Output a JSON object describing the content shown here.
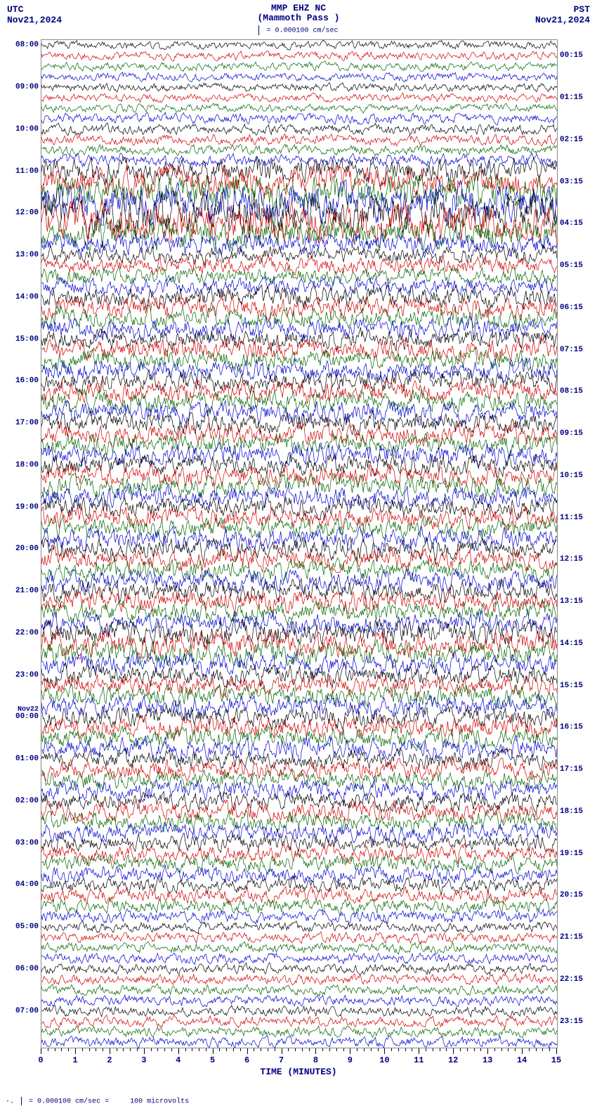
{
  "header": {
    "utc_label": "UTC",
    "utc_date": "Nov21,2024",
    "pst_label": "PST",
    "pst_date": "Nov21,2024",
    "title": "MMP EHZ NC",
    "subtitle": "(Mammoth Pass )",
    "scale_text": "= 0.000100 cm/sec"
  },
  "xaxis": {
    "title": "TIME (MINUTES)",
    "min": 0,
    "max": 15,
    "major_ticks": [
      0,
      1,
      2,
      3,
      4,
      5,
      6,
      7,
      8,
      9,
      10,
      11,
      12,
      13,
      14,
      15
    ],
    "minor_per_major": 4
  },
  "footer": {
    "text_left": "= 0.000100 cm/sec =",
    "text_right": "100 microvolts"
  },
  "colors": {
    "cycle": [
      "#000000",
      "#d00000",
      "#006400",
      "#0000d0"
    ],
    "axis": "#000080",
    "background": "#ffffff"
  },
  "plot": {
    "n_traces": 96,
    "utc_hour_labels": [
      {
        "row": 0,
        "label": "08:00"
      },
      {
        "row": 4,
        "label": "09:00"
      },
      {
        "row": 8,
        "label": "10:00"
      },
      {
        "row": 12,
        "label": "11:00"
      },
      {
        "row": 16,
        "label": "12:00"
      },
      {
        "row": 20,
        "label": "13:00"
      },
      {
        "row": 24,
        "label": "14:00"
      },
      {
        "row": 28,
        "label": "15:00"
      },
      {
        "row": 32,
        "label": "16:00"
      },
      {
        "row": 36,
        "label": "17:00"
      },
      {
        "row": 40,
        "label": "18:00"
      },
      {
        "row": 44,
        "label": "19:00"
      },
      {
        "row": 48,
        "label": "20:00"
      },
      {
        "row": 52,
        "label": "21:00"
      },
      {
        "row": 56,
        "label": "22:00"
      },
      {
        "row": 60,
        "label": "23:00"
      },
      {
        "row": 64,
        "label": "00:00",
        "day": "Nov22"
      },
      {
        "row": 68,
        "label": "01:00"
      },
      {
        "row": 72,
        "label": "02:00"
      },
      {
        "row": 76,
        "label": "03:00"
      },
      {
        "row": 80,
        "label": "04:00"
      },
      {
        "row": 84,
        "label": "05:00"
      },
      {
        "row": 88,
        "label": "06:00"
      },
      {
        "row": 92,
        "label": "07:00"
      }
    ],
    "pst_hour_labels": [
      {
        "row": 1,
        "label": "00:15"
      },
      {
        "row": 5,
        "label": "01:15"
      },
      {
        "row": 9,
        "label": "02:15"
      },
      {
        "row": 13,
        "label": "03:15"
      },
      {
        "row": 17,
        "label": "04:15"
      },
      {
        "row": 21,
        "label": "05:15"
      },
      {
        "row": 25,
        "label": "06:15"
      },
      {
        "row": 29,
        "label": "07:15"
      },
      {
        "row": 33,
        "label": "08:15"
      },
      {
        "row": 37,
        "label": "09:15"
      },
      {
        "row": 41,
        "label": "10:15"
      },
      {
        "row": 45,
        "label": "11:15"
      },
      {
        "row": 49,
        "label": "12:15"
      },
      {
        "row": 53,
        "label": "13:15"
      },
      {
        "row": 57,
        "label": "14:15"
      },
      {
        "row": 61,
        "label": "15:15"
      },
      {
        "row": 65,
        "label": "16:15"
      },
      {
        "row": 69,
        "label": "17:15"
      },
      {
        "row": 73,
        "label": "18:15"
      },
      {
        "row": 77,
        "label": "19:15"
      },
      {
        "row": 81,
        "label": "20:15"
      },
      {
        "row": 85,
        "label": "21:15"
      },
      {
        "row": 89,
        "label": "22:15"
      },
      {
        "row": 93,
        "label": "23:15"
      }
    ],
    "amplitude_profile": [
      4,
      4,
      4,
      4,
      4,
      4,
      4,
      5,
      5,
      5,
      5,
      6,
      12,
      14,
      16,
      18,
      20,
      18,
      14,
      10,
      8,
      8,
      8,
      8,
      10,
      10,
      10,
      10,
      10,
      10,
      10,
      10,
      10,
      10,
      10,
      10,
      10,
      10,
      10,
      10,
      10,
      10,
      10,
      10,
      10,
      10,
      10,
      10,
      10,
      10,
      10,
      10,
      10,
      10,
      10,
      10,
      12,
      12,
      12,
      10,
      10,
      10,
      10,
      10,
      10,
      10,
      10,
      10,
      9,
      9,
      9,
      9,
      9,
      9,
      9,
      9,
      8,
      8,
      8,
      8,
      7,
      7,
      7,
      6,
      5,
      5,
      5,
      5,
      5,
      5,
      5,
      5,
      5,
      5,
      5,
      5
    ],
    "trace_seeds": [
      101,
      202,
      303,
      404,
      505,
      606,
      707,
      808,
      909,
      110,
      211,
      312,
      413,
      514,
      615,
      716,
      817,
      918,
      119,
      220,
      321,
      422,
      523,
      624,
      725,
      826,
      927,
      128,
      229,
      330,
      431,
      532,
      633,
      734,
      835,
      936,
      137,
      238,
      339,
      440,
      541,
      642,
      743,
      844,
      945,
      146,
      247,
      348,
      449,
      550,
      651,
      752,
      853,
      954,
      155,
      256,
      357,
      458,
      559,
      660,
      761,
      862,
      963,
      164,
      265,
      366,
      467,
      568,
      669,
      770,
      871,
      972,
      173,
      274,
      375,
      476,
      577,
      678,
      779,
      880,
      981,
      182,
      283,
      384,
      485,
      586,
      687,
      788,
      889,
      990,
      191,
      292,
      393,
      494,
      595,
      696
    ],
    "samples_per_trace": 600,
    "trace_line_width": 0.7
  }
}
